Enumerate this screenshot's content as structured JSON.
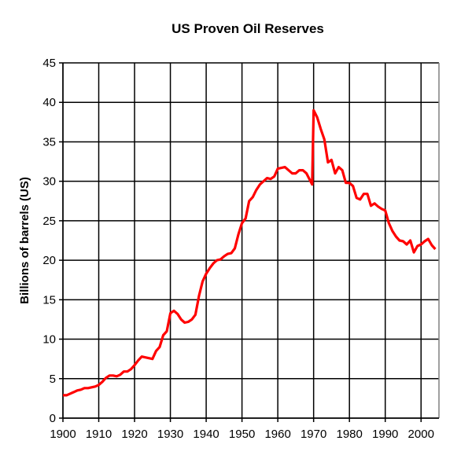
{
  "chart_data": {
    "type": "line",
    "title": "US Proven Oil Reserves",
    "xlabel": "",
    "ylabel": "Billions of barrels (US)",
    "xlim": [
      1900,
      2005
    ],
    "ylim": [
      0,
      45
    ],
    "grid": true,
    "x_ticks": [
      1900,
      1910,
      1920,
      1930,
      1940,
      1950,
      1960,
      1970,
      1980,
      1990,
      2000
    ],
    "y_ticks": [
      0,
      5,
      10,
      15,
      20,
      25,
      30,
      35,
      40,
      45
    ],
    "series": [
      {
        "name": "US Proven Oil Reserves",
        "color": "#ff0000",
        "x": [
          1900,
          1901,
          1902,
          1903,
          1904,
          1905,
          1906,
          1907,
          1908,
          1909,
          1910,
          1911,
          1912,
          1913,
          1914,
          1915,
          1916,
          1917,
          1918,
          1919,
          1920,
          1921,
          1922,
          1923,
          1924,
          1925,
          1926,
          1927,
          1928,
          1929,
          1930,
          1931,
          1932,
          1933,
          1934,
          1935,
          1936,
          1937,
          1938,
          1939,
          1940,
          1941,
          1942,
          1943,
          1944,
          1945,
          1946,
          1947,
          1948,
          1949,
          1950,
          1951,
          1952,
          1953,
          1954,
          1955,
          1956,
          1957,
          1958,
          1959,
          1960,
          1961,
          1962,
          1963,
          1964,
          1965,
          1966,
          1967,
          1968,
          1969.6,
          1970,
          1971,
          1972,
          1973,
          1974,
          1975,
          1976,
          1977,
          1978,
          1979,
          1980,
          1981,
          1982,
          1983,
          1984,
          1985,
          1986,
          1987,
          1988,
          1989,
          1990,
          1991,
          1992,
          1993,
          1994,
          1995,
          1996,
          1997,
          1998,
          1999,
          2000,
          2001,
          2002,
          2003,
          2004
        ],
        "values": [
          2.9,
          2.9,
          3.1,
          3.3,
          3.5,
          3.6,
          3.8,
          3.8,
          3.9,
          4.0,
          4.2,
          4.6,
          5.1,
          5.4,
          5.4,
          5.3,
          5.5,
          5.9,
          5.9,
          6.2,
          6.7,
          7.3,
          7.8,
          7.7,
          7.6,
          7.5,
          8.5,
          9.0,
          10.5,
          11.0,
          13.3,
          13.6,
          13.2,
          12.5,
          12.1,
          12.2,
          12.5,
          13.1,
          15.5,
          17.3,
          18.3,
          19.0,
          19.6,
          20.0,
          20.1,
          20.5,
          20.8,
          20.9,
          21.5,
          23.3,
          24.7,
          25.3,
          27.5,
          28.0,
          28.9,
          29.6,
          30.0,
          30.4,
          30.3,
          30.6,
          31.6,
          31.7,
          31.8,
          31.4,
          31.0,
          31.0,
          31.4,
          31.4,
          31.0,
          29.6,
          39.0,
          38.1,
          36.6,
          35.3,
          32.4,
          32.7,
          31.0,
          31.8,
          31.4,
          29.8,
          29.8,
          29.4,
          27.9,
          27.7,
          28.4,
          28.4,
          26.9,
          27.2,
          26.8,
          26.5,
          26.3,
          24.7,
          23.7,
          23.0,
          22.5,
          22.4,
          22.0,
          22.5,
          21.0,
          21.8,
          22.0,
          22.4,
          22.7,
          21.9,
          21.4
        ]
      }
    ]
  }
}
